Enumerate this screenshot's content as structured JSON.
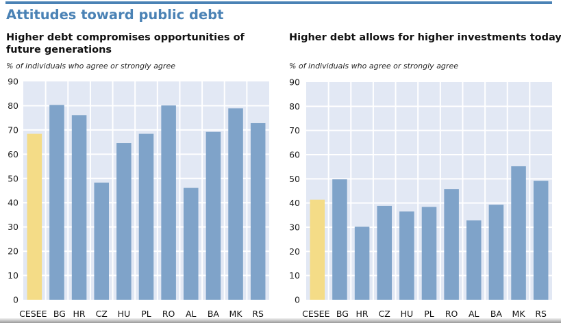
{
  "header": {
    "title": "Attitudes toward public debt"
  },
  "colors": {
    "title": "#4a82b5",
    "plot_background": "#e2e8f4",
    "gridline": "#ffffff",
    "bar": "#7fa3c9",
    "bar_highlight": "#f4dc87"
  },
  "chart_data": [
    {
      "type": "bar",
      "title": "Higher debt compromises opportunities of future generations",
      "title_lines": [
        "Higher debt compromises opportunities of",
        "future generations"
      ],
      "subtitle": "% of individuals who agree or strongly agree",
      "xlabel": "",
      "ylabel": "",
      "ylim": [
        0,
        90
      ],
      "yticks": [
        0,
        10,
        20,
        30,
        40,
        50,
        60,
        70,
        80,
        90
      ],
      "grid": true,
      "legend": "none",
      "categories": [
        "CESEE",
        "BG",
        "HR",
        "CZ",
        "HU",
        "PL",
        "RO",
        "AL",
        "BA",
        "MK",
        "RS"
      ],
      "values": [
        68.4,
        80.3,
        76.1,
        48.3,
        64.6,
        68.4,
        80.1,
        46.1,
        69.2,
        78.9,
        72.8
      ],
      "highlight": [
        "CESEE"
      ]
    },
    {
      "type": "bar",
      "title": "Higher debt allows for higher investments today",
      "title_lines": [
        "Higher debt allows for higher investments today"
      ],
      "subtitle": "% of individuals who agree or strongly agree",
      "xlabel": "",
      "ylabel": "",
      "ylim": [
        0,
        90
      ],
      "yticks": [
        0,
        10,
        20,
        30,
        40,
        50,
        60,
        70,
        80,
        90
      ],
      "grid": true,
      "legend": "none",
      "categories": [
        "CESEE",
        "BG",
        "HR",
        "CZ",
        "HU",
        "PL",
        "RO",
        "AL",
        "BA",
        "MK",
        "RS"
      ],
      "values": [
        41.4,
        49.8,
        30.2,
        38.8,
        36.5,
        38.4,
        45.8,
        32.8,
        39.3,
        55.2,
        49.2
      ],
      "highlight": [
        "CESEE"
      ]
    }
  ]
}
